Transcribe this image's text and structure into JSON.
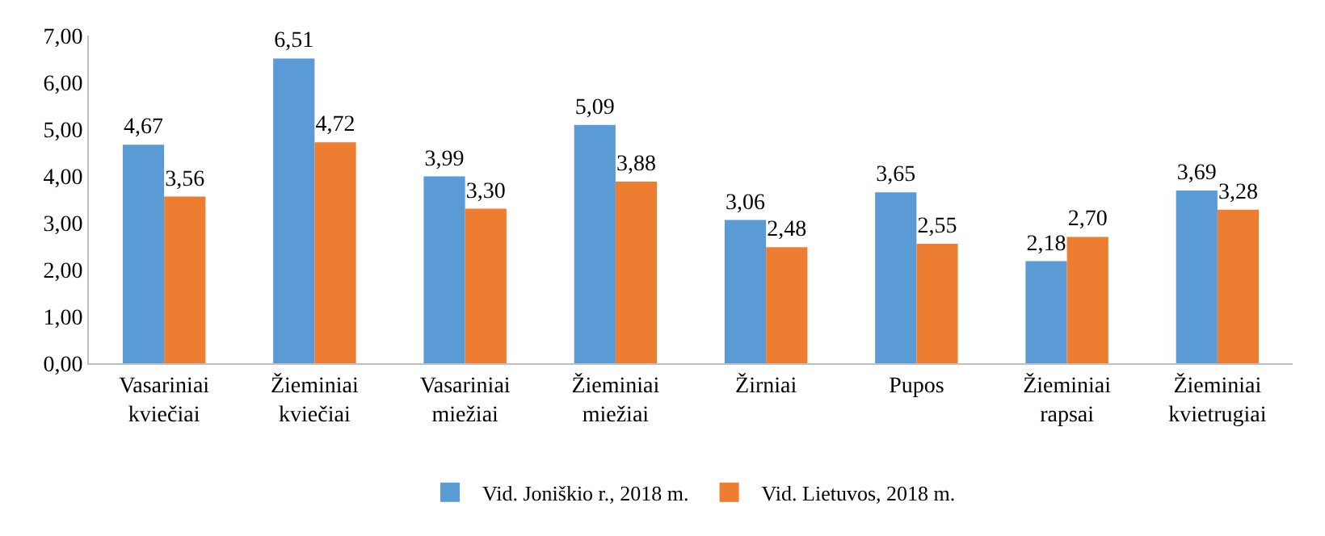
{
  "chart_data": {
    "type": "bar",
    "categories": [
      "Vasariniai kviečiai",
      "Žieminiai kviečiai",
      "Vasariniai miežiai",
      "Žieminiai miežiai",
      "Žirniai",
      "Pupos",
      "Žieminiai rapsai",
      "Žieminiai kvietrugiai"
    ],
    "series": [
      {
        "name": "Vid. Joniškio r., 2018 m.",
        "color": "#5b9bd5",
        "values": [
          4.67,
          6.51,
          3.99,
          5.09,
          3.06,
          3.65,
          2.18,
          3.69
        ],
        "value_labels": [
          "4,67",
          "6,51",
          "3,99",
          "5,09",
          "3,06",
          "3,65",
          "2,18",
          "3,69"
        ]
      },
      {
        "name": "Vid. Lietuvos, 2018 m.",
        "color": "#ed7d31",
        "values": [
          3.56,
          4.72,
          3.3,
          3.88,
          2.48,
          2.55,
          2.7,
          3.28
        ],
        "value_labels": [
          "3,56",
          "4,72",
          "3,30",
          "3,88",
          "2,48",
          "2,55",
          "2,70",
          "3,28"
        ]
      }
    ],
    "ylim": [
      0,
      7
    ],
    "yticks": [
      {
        "value": 0,
        "label": "0,00"
      },
      {
        "value": 1,
        "label": "1,00"
      },
      {
        "value": 2,
        "label": "2,00"
      },
      {
        "value": 3,
        "label": "3,00"
      },
      {
        "value": 4,
        "label": "4,00"
      },
      {
        "value": 5,
        "label": "5,00"
      },
      {
        "value": 6,
        "label": "6,00"
      },
      {
        "value": 7,
        "label": "7,00"
      }
    ],
    "grid": false,
    "legend": "bottom"
  }
}
